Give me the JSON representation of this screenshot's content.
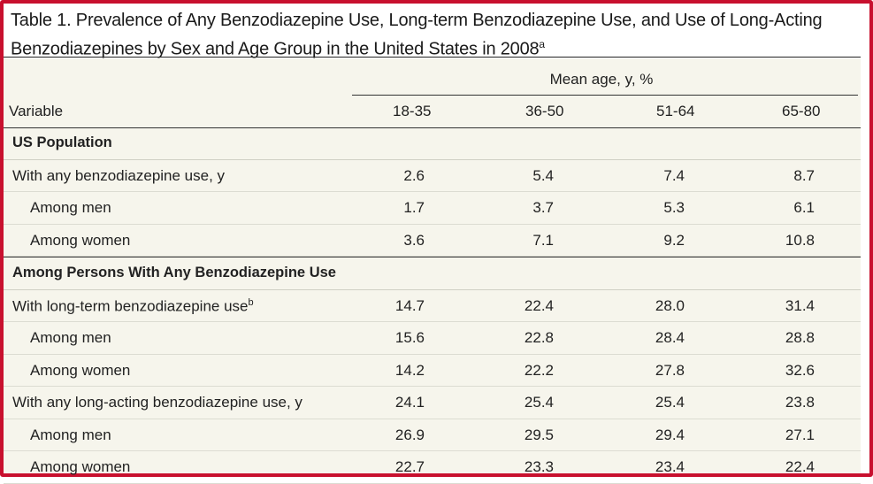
{
  "title": {
    "line1": "Table 1. Prevalence of Any Benzodiazepine Use, Long-term Benzodiazepine Use, and Use of Long-Acting",
    "line2": "Benzodiazepines by Sex and Age Group in the United States in 2008",
    "footnote_mark": "a"
  },
  "header": {
    "group_label": "Mean age, y, %",
    "variable_label": "Variable",
    "columns": [
      "18-35",
      "36-50",
      "51-64",
      "65-80"
    ]
  },
  "rows": [
    {
      "label": "US Population",
      "values": []
    },
    {
      "label": "With any benzodiazepine use, y",
      "values": [
        "2.6",
        "5.4",
        "7.4",
        "8.7"
      ]
    },
    {
      "label": "Among men",
      "values": [
        "1.7",
        "3.7",
        "5.3",
        "6.1"
      ]
    },
    {
      "label": "Among women",
      "values": [
        "3.6",
        "7.1",
        "9.2",
        "10.8"
      ]
    },
    {
      "label": "Among Persons With Any Benzodiazepine Use",
      "values": []
    },
    {
      "label": "With long-term benzodiazepine use",
      "sup": "b",
      "values": [
        "14.7",
        "22.4",
        "28.0",
        "31.4"
      ]
    },
    {
      "label": "Among men",
      "values": [
        "15.6",
        "22.8",
        "28.4",
        "28.8"
      ]
    },
    {
      "label": "Among women",
      "values": [
        "14.2",
        "22.2",
        "27.8",
        "32.6"
      ]
    },
    {
      "label": "With any long-acting benzodiazepine use, y",
      "values": [
        "24.1",
        "25.4",
        "25.4",
        "23.8"
      ]
    },
    {
      "label": "Among men",
      "values": [
        "26.9",
        "29.5",
        "29.4",
        "27.1"
      ]
    },
    {
      "label": "Among women",
      "values": [
        "22.7",
        "23.3",
        "23.4",
        "22.4"
      ]
    }
  ],
  "colors": {
    "border": "#c8102e",
    "table_background": "#f6f5ec"
  }
}
